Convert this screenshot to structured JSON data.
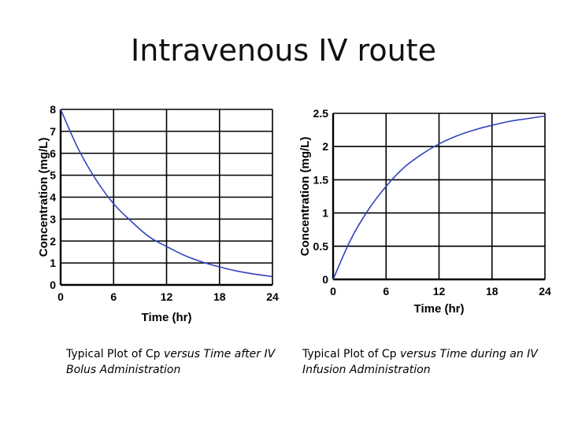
{
  "slide": {
    "title": "Intravenous IV route"
  },
  "captions": {
    "left": {
      "part1": "Typical Plot of Cp ",
      "part2": "versus Time after IV Bolus Administration"
    },
    "right": {
      "part1": "Typical Plot of Cp ",
      "part2": "versus Time during an IV Infusion Administration"
    }
  },
  "colors": {
    "curve": "#3344bb",
    "grid": "#000000"
  },
  "chart_data": [
    {
      "type": "line",
      "xlabel": "Time (hr)",
      "ylabel": "Concentration (mg/L)",
      "xlim": [
        0,
        24
      ],
      "ylim": [
        0,
        8
      ],
      "xticks": [
        "0",
        "6",
        "12",
        "18",
        "24"
      ],
      "yticks": [
        "0",
        "1",
        "2",
        "3",
        "4",
        "5",
        "6",
        "7",
        "8"
      ],
      "grid": true,
      "series": [
        {
          "x": [
            0,
            2,
            4,
            6,
            8,
            10,
            12,
            14,
            16,
            18,
            20,
            22,
            24
          ],
          "y": [
            8.0,
            6.2,
            4.8,
            3.7,
            2.9,
            2.2,
            1.75,
            1.35,
            1.05,
            0.82,
            0.63,
            0.49,
            0.38
          ]
        }
      ]
    },
    {
      "type": "line",
      "xlabel": "Time (hr)",
      "ylabel": "Concentration (mg/L)",
      "xlim": [
        0,
        24
      ],
      "ylim": [
        0,
        2.5
      ],
      "xticks": [
        "0",
        "6",
        "12",
        "18",
        "24"
      ],
      "yticks": [
        "0",
        "0.5",
        "1",
        "1.5",
        "2",
        "2.5"
      ],
      "grid": true,
      "series": [
        {
          "x": [
            0,
            2,
            4,
            6,
            8,
            10,
            12,
            14,
            16,
            18,
            20,
            22,
            24
          ],
          "y": [
            0,
            0.6,
            1.05,
            1.4,
            1.68,
            1.88,
            2.04,
            2.16,
            2.25,
            2.32,
            2.38,
            2.42,
            2.46
          ]
        }
      ]
    }
  ]
}
